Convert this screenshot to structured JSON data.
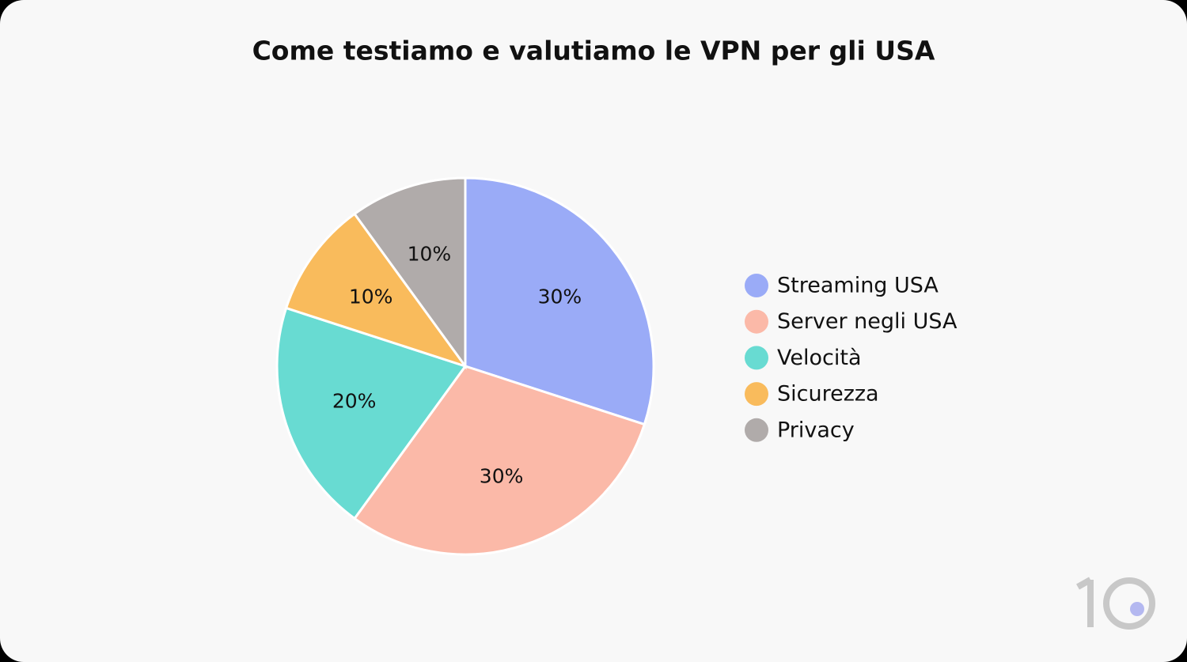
{
  "chart_data": {
    "type": "pie",
    "title": "Come testiamo e valutiamo le VPN per gli USA",
    "categories": [
      "Streaming USA",
      "Server negli USA",
      "Velocità",
      "Sicurezza",
      "Privacy"
    ],
    "values": [
      30,
      30,
      20,
      10,
      10
    ],
    "value_labels": [
      "30%",
      "30%",
      "20%",
      "10%",
      "10%"
    ],
    "colors": [
      "#9aabf7",
      "#fbb9a8",
      "#68dbd2",
      "#f9bb5c",
      "#b0abaa"
    ],
    "legend": "right"
  }
}
